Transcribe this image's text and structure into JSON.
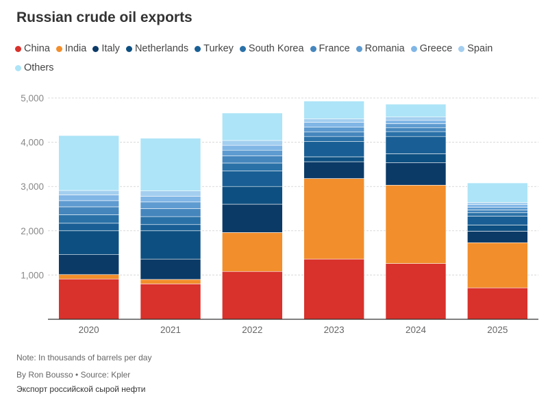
{
  "header": {
    "title": "Russian crude oil exports"
  },
  "footer": {
    "note": "Note: In thousands of barrels per day",
    "byline": "By Ron Bousso • Source: Kpler",
    "russian_label": "Экспорт российской сырой нефти"
  },
  "chart_data": {
    "type": "bar",
    "stacked": true,
    "title": "Russian crude oil exports",
    "xlabel": "",
    "ylabel": "",
    "categories": [
      "2020",
      "2021",
      "2022",
      "2023",
      "2024",
      "2025"
    ],
    "ylim": [
      0,
      5000
    ],
    "yticks": [
      1000,
      2000,
      3000,
      4000,
      5000
    ],
    "ytick_labels": [
      "1,000",
      "2,000",
      "3,000",
      "4,000",
      "5,000"
    ],
    "grid": true,
    "legend_position": "top",
    "series": [
      {
        "name": "China",
        "color": "#d9312b",
        "values": [
          910,
          800,
          1080,
          1360,
          1260,
          710
        ]
      },
      {
        "name": "India",
        "color": "#f28e2b",
        "values": [
          100,
          100,
          880,
          1820,
          1770,
          1020
        ]
      },
      {
        "name": "Italy",
        "color": "#0b3a67",
        "values": [
          450,
          460,
          640,
          380,
          510,
          260
        ]
      },
      {
        "name": "Netherlands",
        "color": "#0d4f80",
        "values": [
          540,
          640,
          400,
          110,
          200,
          140
        ]
      },
      {
        "name": "Turkey",
        "color": "#195f95",
        "values": [
          170,
          140,
          350,
          350,
          390,
          200
        ]
      },
      {
        "name": "South Korea",
        "color": "#2a71a8",
        "values": [
          190,
          180,
          180,
          110,
          110,
          80
        ]
      },
      {
        "name": "France",
        "color": "#4586bd",
        "values": [
          180,
          180,
          160,
          100,
          90,
          60
        ]
      },
      {
        "name": "Romania",
        "color": "#5e9bd0",
        "values": [
          140,
          150,
          130,
          110,
          90,
          60
        ]
      },
      {
        "name": "Greece",
        "color": "#80b6e6",
        "values": [
          130,
          130,
          110,
          110,
          80,
          60
        ]
      },
      {
        "name": "Spain",
        "color": "#a3ceef",
        "values": [
          100,
          120,
          110,
          80,
          70,
          50
        ]
      },
      {
        "name": "Others",
        "color": "#ade4f7",
        "values": [
          1240,
          1190,
          620,
          400,
          290,
          440
        ]
      }
    ]
  }
}
